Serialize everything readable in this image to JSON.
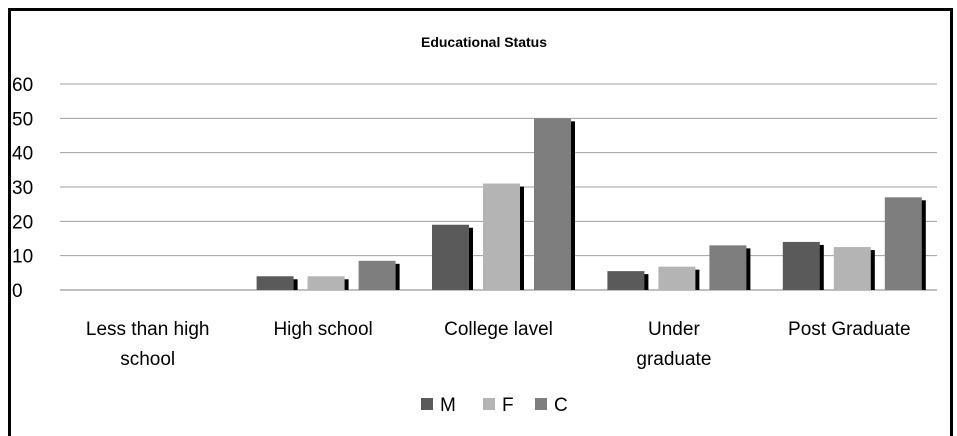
{
  "chart_data": {
    "type": "bar",
    "title": "Educational Status",
    "categories": [
      [
        "Less than high",
        "school"
      ],
      [
        "High school"
      ],
      [
        "College lavel"
      ],
      [
        "Under",
        "graduate"
      ],
      [
        "Post Graduate"
      ]
    ],
    "series": [
      {
        "name": "M",
        "color": "#5a5a5a",
        "values": [
          0,
          4,
          19,
          5.5,
          14
        ]
      },
      {
        "name": "F",
        "color": "#b4b4b4",
        "values": [
          0,
          4,
          31,
          6.8,
          12.5
        ]
      },
      {
        "name": "C",
        "color": "#7e7e7e",
        "values": [
          0,
          8.5,
          50,
          13,
          27
        ]
      }
    ],
    "ylim": [
      0,
      60
    ],
    "yticks": [
      0,
      10,
      20,
      30,
      40,
      50,
      60
    ],
    "grid": true,
    "legend_position": "bottom"
  }
}
